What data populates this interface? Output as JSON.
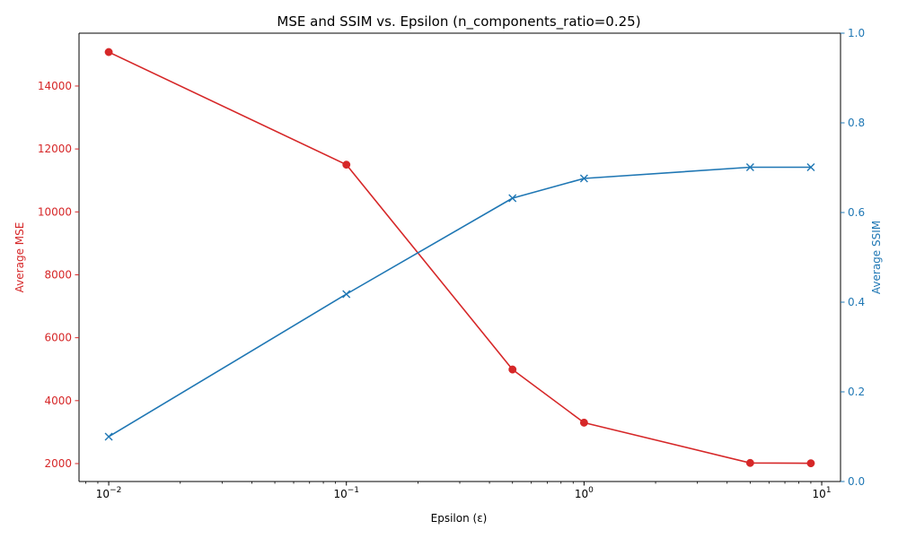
{
  "chart_data": {
    "type": "line",
    "title": "MSE and SSIM vs. Epsilon (n_components_ratio=0.25)",
    "xlabel": "Epsilon (ε)",
    "x_scale": "log",
    "xlim": [
      0.0075,
      12
    ],
    "x_ticks": [
      {
        "value": 0.01,
        "base": "10",
        "exp": "−2"
      },
      {
        "value": 0.1,
        "base": "10",
        "exp": "−1"
      },
      {
        "value": 1,
        "base": "10",
        "exp": "0"
      },
      {
        "value": 10,
        "base": "10",
        "exp": "1"
      }
    ],
    "x": [
      0.01,
      0.1,
      0.5,
      1,
      5,
      9
    ],
    "left_axis": {
      "label": "Average MSE",
      "color": "#d62728",
      "ylim": [
        1430,
        15680
      ],
      "ticks": [
        2000,
        4000,
        6000,
        8000,
        10000,
        12000,
        14000
      ]
    },
    "right_axis": {
      "label": "Average SSIM",
      "color": "#1f77b4",
      "ylim": [
        0,
        1
      ],
      "ticks": [
        "0.0",
        "0.2",
        "0.4",
        "0.6",
        "0.8",
        "1.0"
      ]
    },
    "series": [
      {
        "axis": "left",
        "color": "#d62728",
        "marker": "circle",
        "values": [
          15080,
          11500,
          4990,
          3300,
          2020,
          2010
        ]
      },
      {
        "axis": "right",
        "color": "#1f77b4",
        "marker": "x",
        "values": [
          0.1,
          0.418,
          0.632,
          0.676,
          0.701,
          0.701
        ]
      }
    ],
    "grid": false
  }
}
